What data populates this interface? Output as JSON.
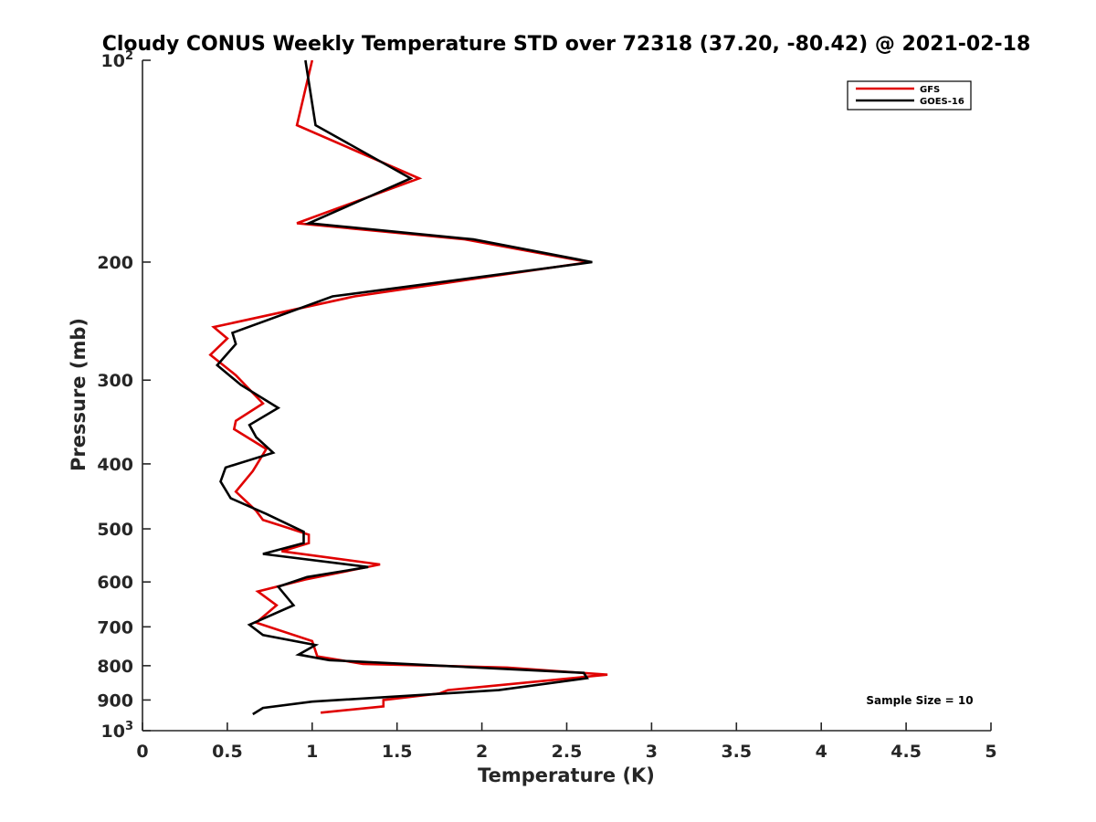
{
  "chart_data": {
    "type": "line",
    "title": "Cloudy CONUS Weekly Temperature STD over 72318 (37.20, -80.42) @ 2021-02-18",
    "xlabel": "Temperature (K)",
    "ylabel": "Pressure (mb)",
    "xlim": [
      0,
      5
    ],
    "ylim": [
      100,
      1000
    ],
    "y_scale": "log",
    "y_reversed": true,
    "x_ticks": [
      "0",
      "0.5",
      "1",
      "1.5",
      "2",
      "2.5",
      "3",
      "3.5",
      "4",
      "4.5",
      "5"
    ],
    "y_ticks": [
      {
        "value": 100,
        "base": "10",
        "exp": "2"
      },
      {
        "value": 200,
        "label": "200"
      },
      {
        "value": 300,
        "label": "300"
      },
      {
        "value": 400,
        "label": "400"
      },
      {
        "value": 500,
        "label": "500"
      },
      {
        "value": 600,
        "label": "600"
      },
      {
        "value": 700,
        "label": "700"
      },
      {
        "value": 800,
        "label": "800"
      },
      {
        "value": 900,
        "label": "900"
      },
      {
        "value": 1000,
        "base": "10",
        "exp": "3"
      }
    ],
    "grid": false,
    "legend_position": "top-right",
    "annotation": "Sample Size = 10",
    "series": [
      {
        "name": "GFS",
        "color": "#e00000",
        "points": [
          [
            1.0,
            100
          ],
          [
            0.91,
            125
          ],
          [
            1.63,
            150
          ],
          [
            0.91,
            175
          ],
          [
            1.9,
            185
          ],
          [
            2.63,
            200
          ],
          [
            1.25,
            225
          ],
          [
            0.42,
            250
          ],
          [
            0.5,
            260
          ],
          [
            0.4,
            275
          ],
          [
            0.55,
            295
          ],
          [
            0.71,
            325
          ],
          [
            0.55,
            345
          ],
          [
            0.54,
            355
          ],
          [
            0.73,
            380
          ],
          [
            0.65,
            410
          ],
          [
            0.55,
            440
          ],
          [
            0.67,
            470
          ],
          [
            0.71,
            485
          ],
          [
            0.82,
            495
          ],
          [
            0.98,
            510
          ],
          [
            0.98,
            525
          ],
          [
            0.82,
            540
          ],
          [
            1.4,
            565
          ],
          [
            0.96,
            595
          ],
          [
            0.68,
            620
          ],
          [
            0.79,
            650
          ],
          [
            0.67,
            690
          ],
          [
            1.0,
            735
          ],
          [
            1.03,
            775
          ],
          [
            1.3,
            795
          ],
          [
            2.15,
            805
          ],
          [
            2.74,
            825
          ],
          [
            1.8,
            870
          ],
          [
            1.75,
            880
          ],
          [
            1.42,
            900
          ],
          [
            1.42,
            920
          ],
          [
            1.05,
            940
          ]
        ]
      },
      {
        "name": "GOES-16",
        "color": "#000000",
        "points": [
          [
            0.96,
            100
          ],
          [
            1.02,
            125
          ],
          [
            1.58,
            150
          ],
          [
            0.98,
            175
          ],
          [
            1.95,
            185
          ],
          [
            2.65,
            200
          ],
          [
            1.12,
            225
          ],
          [
            0.53,
            255
          ],
          [
            0.55,
            265
          ],
          [
            0.44,
            285
          ],
          [
            0.58,
            305
          ],
          [
            0.8,
            330
          ],
          [
            0.63,
            350
          ],
          [
            0.67,
            365
          ],
          [
            0.77,
            385
          ],
          [
            0.49,
            405
          ],
          [
            0.46,
            425
          ],
          [
            0.52,
            450
          ],
          [
            0.73,
            475
          ],
          [
            0.95,
            505
          ],
          [
            0.95,
            525
          ],
          [
            0.71,
            545
          ],
          [
            1.33,
            570
          ],
          [
            0.97,
            590
          ],
          [
            0.8,
            610
          ],
          [
            0.89,
            650
          ],
          [
            0.63,
            695
          ],
          [
            0.71,
            720
          ],
          [
            1.02,
            745
          ],
          [
            0.92,
            770
          ],
          [
            1.1,
            785
          ],
          [
            2.6,
            820
          ],
          [
            2.62,
            835
          ],
          [
            2.1,
            870
          ],
          [
            1.0,
            905
          ],
          [
            0.71,
            925
          ],
          [
            0.65,
            945
          ]
        ]
      }
    ]
  }
}
